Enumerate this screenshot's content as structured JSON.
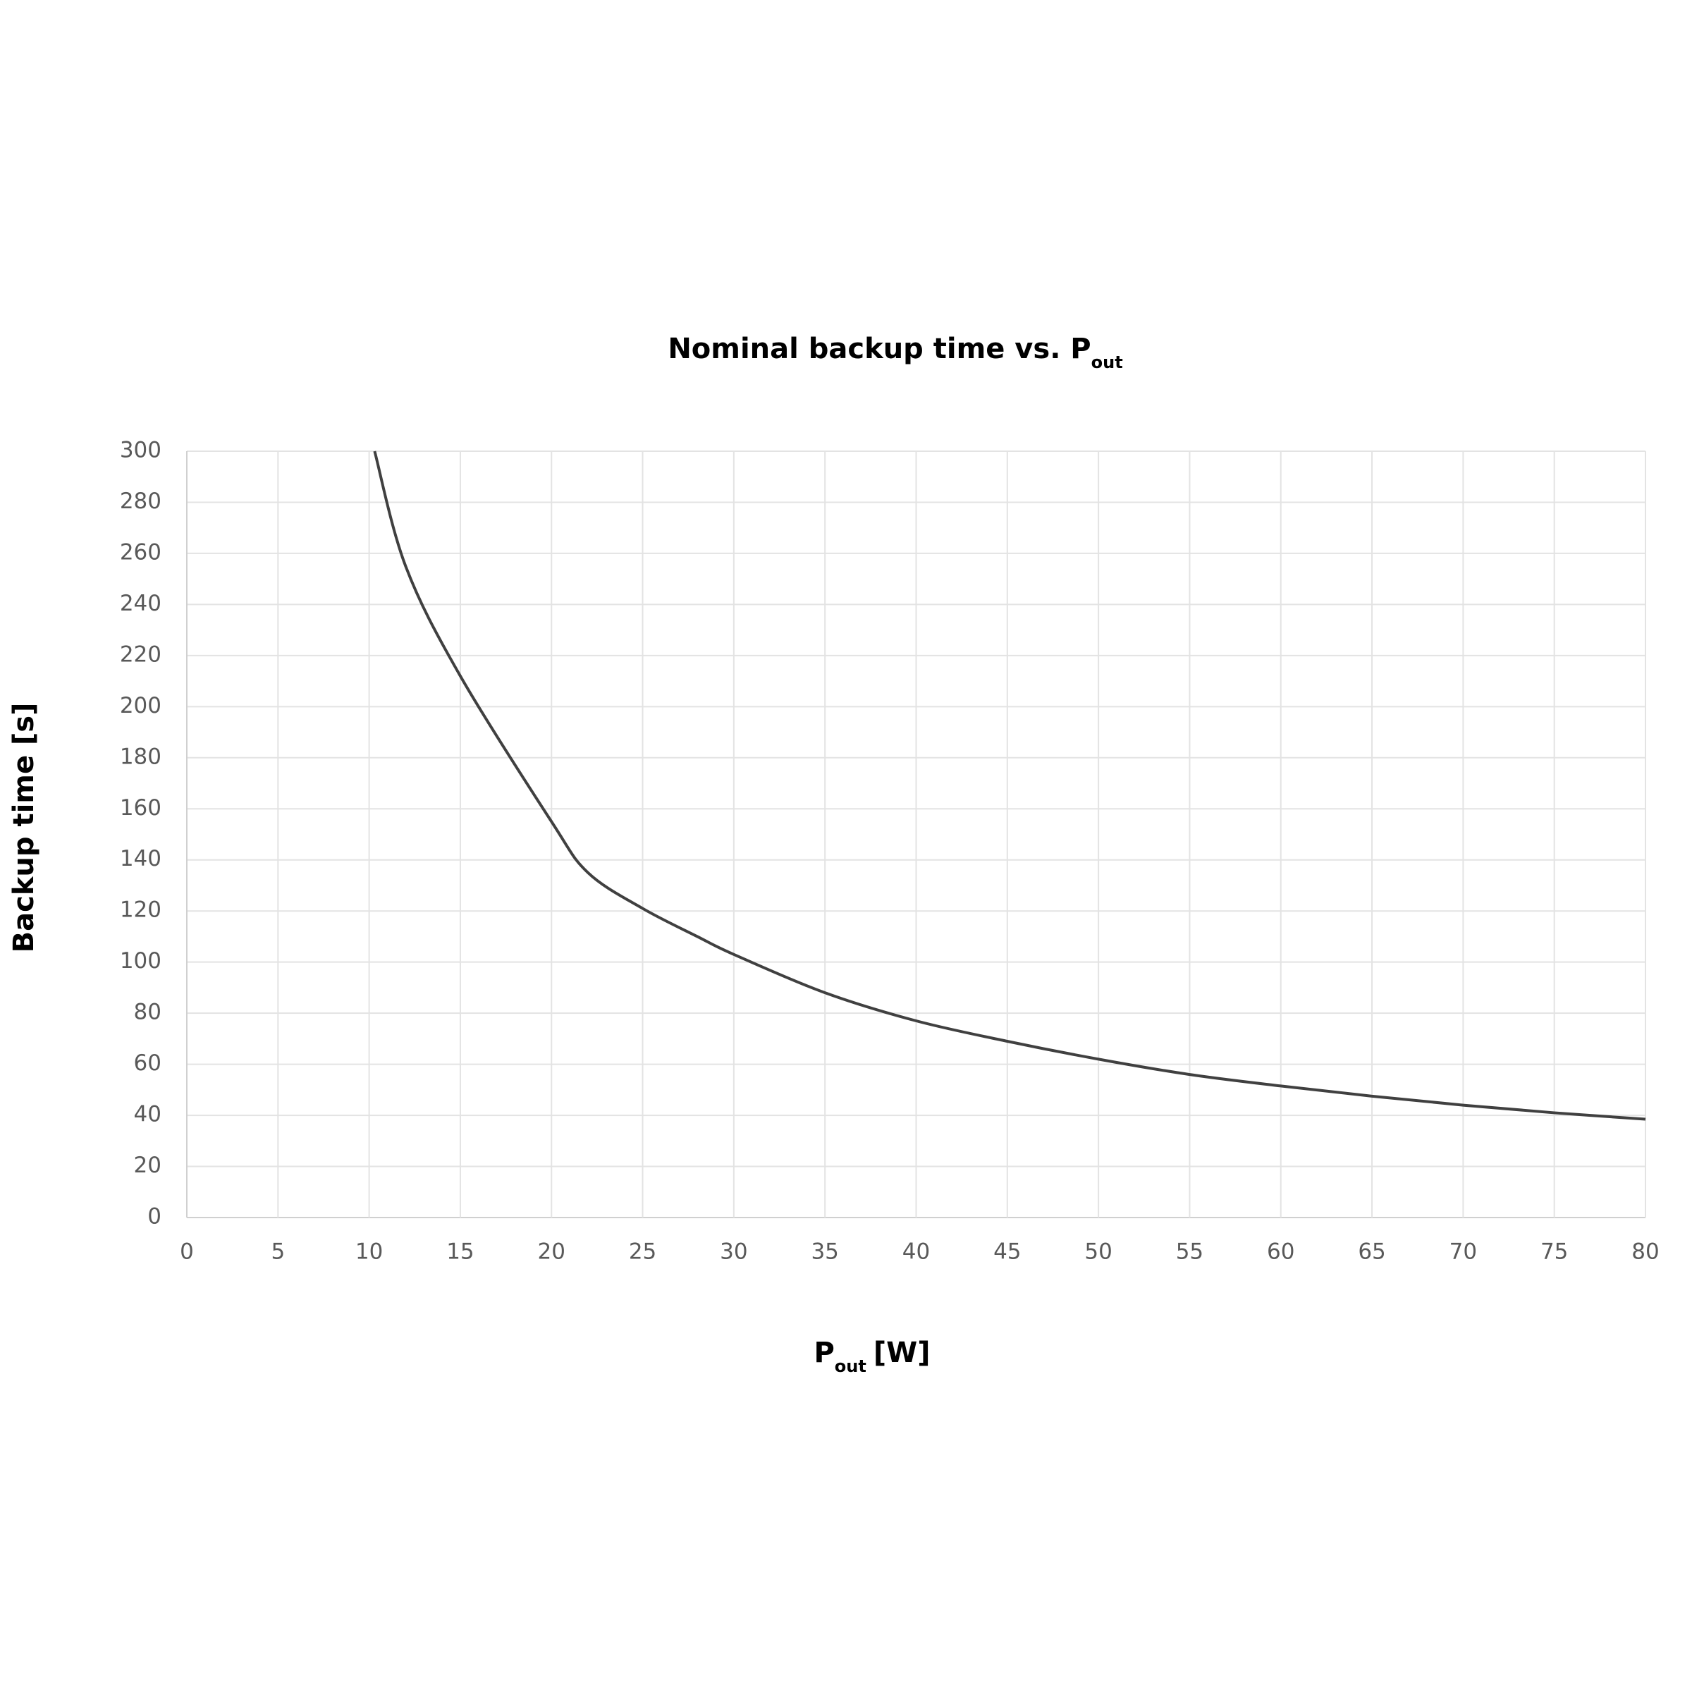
{
  "chart_data": {
    "type": "line",
    "title": "Nominal backup time vs. P",
    "title_subscript": "out",
    "xlabel": "P",
    "xlabel_subscript": "out",
    "xlabel_suffix": "[W]",
    "ylabel": "Backup time [s]",
    "series": [
      {
        "name": "Backup time",
        "color": "#404040",
        "x": [
          10.3,
          12,
          15,
          20,
          22,
          25,
          28,
          30,
          35,
          40,
          45,
          50,
          55,
          60,
          65,
          70,
          75,
          80
        ],
        "values": [
          300,
          255,
          212,
          155,
          135,
          121,
          110,
          103,
          88,
          77,
          69,
          62,
          56,
          51.5,
          47.5,
          44,
          41,
          38.5
        ]
      }
    ],
    "xlim": [
      0,
      80
    ],
    "xticks": [
      0,
      5,
      10,
      15,
      20,
      25,
      30,
      35,
      40,
      45,
      50,
      55,
      60,
      65,
      70,
      75,
      80
    ],
    "ylim": [
      0,
      300
    ],
    "yticks": [
      0,
      20,
      40,
      60,
      80,
      100,
      120,
      140,
      160,
      180,
      200,
      220,
      240,
      260,
      280,
      300
    ],
    "grid": true
  }
}
